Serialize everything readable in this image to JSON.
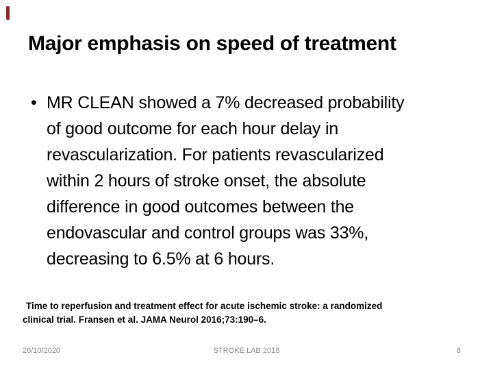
{
  "slide": {
    "title": "Major emphasis on speed of treatment",
    "bullet": {
      "glyph": "•",
      "lines": [
        "MR CLEAN showed a 7% decreased probability",
        "of good outcome for each hour delay in",
        "revascularization. For patients revascularized",
        "within 2 hours of stroke onset, the absolute",
        "difference in good outcomes between the",
        "endovascular and control groups was 33%,",
        "decreasing to 6.5% at 6 hours."
      ]
    },
    "citation": {
      "lines": [
        "Time to reperfusion and treatment effect for acute ischemic stroke: a randomized",
        "clinical trial. Fransen et al. JAMA Neurol 2016;73:190–6."
      ]
    },
    "footer": {
      "date": "26/10/2020",
      "center_text": "STROKE LAB 2018",
      "page_number": "8"
    },
    "colors": {
      "accent_bar": "#8E2A2A",
      "text": "#000000",
      "footer_text": "#898989",
      "background": "#FFFFFF"
    }
  }
}
